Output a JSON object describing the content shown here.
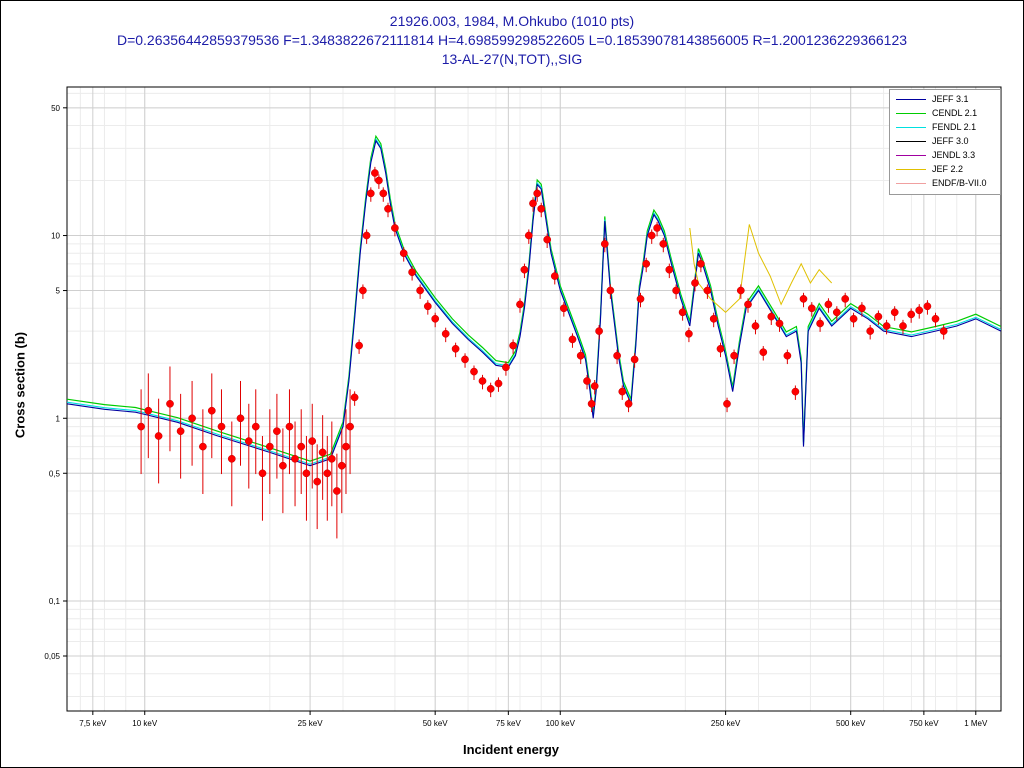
{
  "chart_data": {
    "type": "scatter",
    "title": "21926.003, 1984, M.Ohkubo (1010 pts)",
    "subtitle": "D=0.26356442859379536 F=1.3483822672111814 H=4.698599298522605 L=0.18539078143856005 R=1.2001236229366123",
    "subtitle2": "13-AL-27(N,TOT),,SIG",
    "xlabel": "Incident energy",
    "ylabel": "Cross section (b)",
    "x_scale": "log",
    "y_scale": "log",
    "xlim_keV": [
      6.5,
      1150
    ],
    "ylim": [
      0.025,
      65
    ],
    "grid": true,
    "legend_position": "top-right",
    "x_ticks": [
      {
        "value": 7.5,
        "label": "7,5 keV"
      },
      {
        "value": 10,
        "label": "10 keV"
      },
      {
        "value": 25,
        "label": "25 keV"
      },
      {
        "value": 50,
        "label": "50 keV"
      },
      {
        "value": 75,
        "label": "75 keV"
      },
      {
        "value": 100,
        "label": "100 keV"
      },
      {
        "value": 250,
        "label": "250 keV"
      },
      {
        "value": 500,
        "label": "500 keV"
      },
      {
        "value": 750,
        "label": "750 keV"
      },
      {
        "value": 1000,
        "label": "1 MeV"
      }
    ],
    "y_ticks": [
      {
        "value": 0.05,
        "label": "0,05"
      },
      {
        "value": 0.1,
        "label": "0,1"
      },
      {
        "value": 0.5,
        "label": "0,5"
      },
      {
        "value": 1,
        "label": "1"
      },
      {
        "value": 5,
        "label": "5"
      },
      {
        "value": 10,
        "label": "10"
      },
      {
        "value": 50,
        "label": "50"
      }
    ],
    "series": [
      {
        "name": "JEFF 3.1",
        "color": "#0000a0"
      },
      {
        "name": "CENDL 2.1",
        "color": "#00cc00"
      },
      {
        "name": "FENDL 2.1",
        "color": "#00e0e0"
      },
      {
        "name": "JEFF 3.0",
        "color": "#000000"
      },
      {
        "name": "JENDL 3.3",
        "color": "#a000a0"
      },
      {
        "name": "JEF 2.2",
        "color": "#e0c000"
      },
      {
        "name": "ENDF/B-VII.0",
        "color": "#f0a0a0"
      }
    ],
    "evaluated_curve": {
      "x": [
        6.5,
        8,
        9.5,
        10,
        12,
        15,
        20,
        25,
        28,
        30,
        31,
        32,
        33,
        34,
        35,
        36,
        37,
        38,
        39,
        40,
        42,
        45,
        50,
        55,
        60,
        65,
        70,
        75,
        78,
        80,
        82,
        84,
        86,
        88,
        90,
        92,
        95,
        100,
        110,
        115,
        118,
        120,
        122,
        125,
        128,
        132,
        138,
        142,
        148,
        152,
        155,
        158,
        162,
        168,
        172,
        178,
        185,
        195,
        205,
        210,
        215,
        220,
        230,
        240,
        250,
        260,
        270,
        280,
        300,
        330,
        350,
        370,
        380,
        385,
        395,
        420,
        450,
        500,
        550,
        600,
        700,
        800,
        900,
        1000,
        1150
      ],
      "y": [
        1.2,
        1.12,
        1.08,
        1.05,
        0.95,
        0.8,
        0.65,
        0.55,
        0.6,
        0.9,
        1.6,
        3.5,
        8,
        15,
        25,
        33,
        30,
        22,
        15,
        11,
        8,
        6,
        4.3,
        3.3,
        2.7,
        2.3,
        1.95,
        1.9,
        2.2,
        2.8,
        4,
        6.5,
        12,
        19,
        18,
        13,
        8,
        5,
        2.8,
        2.1,
        1.4,
        1.0,
        1.4,
        3.5,
        12,
        5,
        2.2,
        1.5,
        1.2,
        2.5,
        5,
        6.5,
        10,
        13,
        12,
        10,
        7,
        4.5,
        3.2,
        5,
        8,
        7,
        5,
        3.2,
        2.2,
        1.4,
        2.5,
        4,
        5,
        3.5,
        2.8,
        3,
        2,
        0.7,
        3,
        4,
        3.2,
        4,
        3.5,
        3,
        2.8,
        3,
        3.2,
        3.5,
        3
      ]
    },
    "jef22_curve": {
      "x": [
        205,
        210,
        215,
        230,
        250,
        270,
        285,
        300,
        320,
        340,
        360,
        380,
        400,
        420,
        450
      ],
      "y": [
        11,
        7,
        5.5,
        4.5,
        3.8,
        4.5,
        11.5,
        8,
        6,
        4.2,
        5.5,
        7,
        5.5,
        6.5,
        5.5
      ]
    },
    "measured_points": {
      "x": [
        9.8,
        10.2,
        10.8,
        11.5,
        12.2,
        13,
        13.8,
        14.5,
        15.3,
        16.2,
        17,
        17.8,
        18.5,
        19.2,
        20,
        20.8,
        21.5,
        22.3,
        23,
        23.8,
        24.5,
        25.3,
        26,
        26.8,
        27.5,
        28.2,
        29,
        29.8,
        30.5,
        31.2,
        32,
        32.8,
        33.5,
        34.2,
        35,
        35.8,
        36.6,
        37.5,
        38.5,
        40,
        42,
        44,
        46,
        48,
        50,
        53,
        56,
        59,
        62,
        65,
        68,
        71,
        74,
        77,
        80,
        82,
        84,
        86,
        88,
        90,
        93,
        97,
        102,
        107,
        112,
        116,
        119,
        121,
        124,
        128,
        132,
        137,
        141,
        146,
        151,
        156,
        161,
        166,
        171,
        177,
        183,
        190,
        197,
        204,
        211,
        218,
        226,
        234,
        243,
        252,
        262,
        272,
        283,
        295,
        308,
        322,
        337,
        352,
        368,
        385,
        403,
        422,
        442,
        463,
        485,
        508,
        532,
        557,
        583,
        610,
        638,
        668,
        699,
        731,
        765,
        800,
        837
      ],
      "y": [
        0.9,
        1.1,
        0.8,
        1.2,
        0.85,
        1.0,
        0.7,
        1.1,
        0.9,
        0.6,
        1.0,
        0.75,
        0.9,
        0.5,
        0.7,
        0.85,
        0.55,
        0.9,
        0.6,
        0.7,
        0.5,
        0.75,
        0.45,
        0.65,
        0.5,
        0.6,
        0.4,
        0.55,
        0.7,
        0.9,
        1.3,
        2.5,
        5,
        10,
        17,
        22,
        20,
        17,
        14,
        11,
        8,
        6.3,
        5,
        4.1,
        3.5,
        2.9,
        2.4,
        2.1,
        1.8,
        1.6,
        1.45,
        1.55,
        1.9,
        2.5,
        4.2,
        6.5,
        10,
        15,
        17,
        14,
        9.5,
        6,
        4,
        2.7,
        2.2,
        1.6,
        1.2,
        1.5,
        3,
        9,
        5,
        2.2,
        1.4,
        1.2,
        2.1,
        4.5,
        7,
        10,
        11,
        9,
        6.5,
        5,
        3.8,
        2.9,
        5.5,
        7,
        5,
        3.5,
        2.4,
        1.2,
        2.2,
        5,
        4.2,
        3.2,
        2.3,
        3.6,
        3.3,
        2.2,
        1.4,
        4.5,
        4,
        3.3,
        4.2,
        3.8,
        4.5,
        3.5,
        4,
        3,
        3.6,
        3.2,
        3.8,
        3.2,
        3.7,
        3.9,
        4.1,
        3.5,
        3
      ]
    }
  }
}
